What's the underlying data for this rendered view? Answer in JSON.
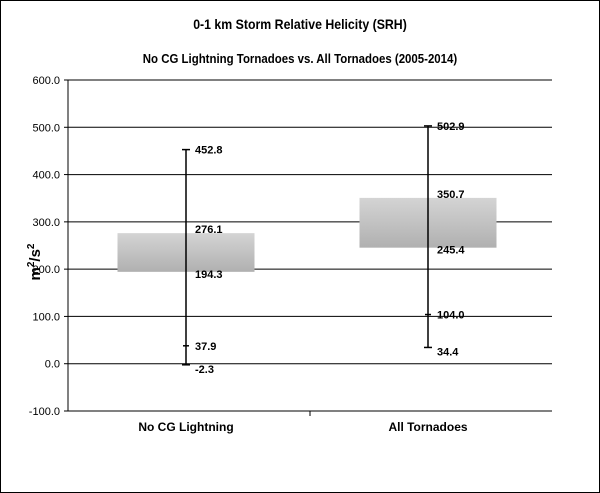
{
  "chart_data": {
    "type": "box",
    "title": "0-1 km Storm Relative Helicity (SRH)",
    "subtitle": "No CG Lightning Tornadoes vs. All Tornadoes (2005-2014)",
    "ylabel_base": "m",
    "ylabel_exp1": "2",
    "ylabel_mid": "/s",
    "ylabel_exp2": "2",
    "ylim": [
      -100,
      600
    ],
    "yticks": [
      -100,
      0,
      100,
      200,
      300,
      400,
      500,
      600
    ],
    "ytick_labels": [
      "-100.0",
      "0.0",
      "100.0",
      "200.0",
      "300.0",
      "400.0",
      "500.0",
      "600.0"
    ],
    "grid": true,
    "categories": [
      "No CG Lightning",
      "All Tornadoes"
    ],
    "boxes": [
      {
        "max": 452.8,
        "q3": 276.1,
        "q1": 194.3,
        "p10": 37.9,
        "min": -2.3,
        "labels": {
          "max": "452.8",
          "q3": "276.1",
          "q1": "194.3",
          "p10": "37.9",
          "min": "-2.3"
        }
      },
      {
        "max": 502.9,
        "q3": 350.7,
        "q1": 245.4,
        "p10": 104.0,
        "min": 34.4,
        "labels": {
          "max": "502.9",
          "q3": "350.7",
          "q1": "245.4",
          "p10": "104.0",
          "min": "34.4"
        }
      }
    ],
    "colors": {
      "box_top": "#d4d4d4",
      "box_bottom": "#b0b0b0",
      "grid": "#000000"
    }
  }
}
